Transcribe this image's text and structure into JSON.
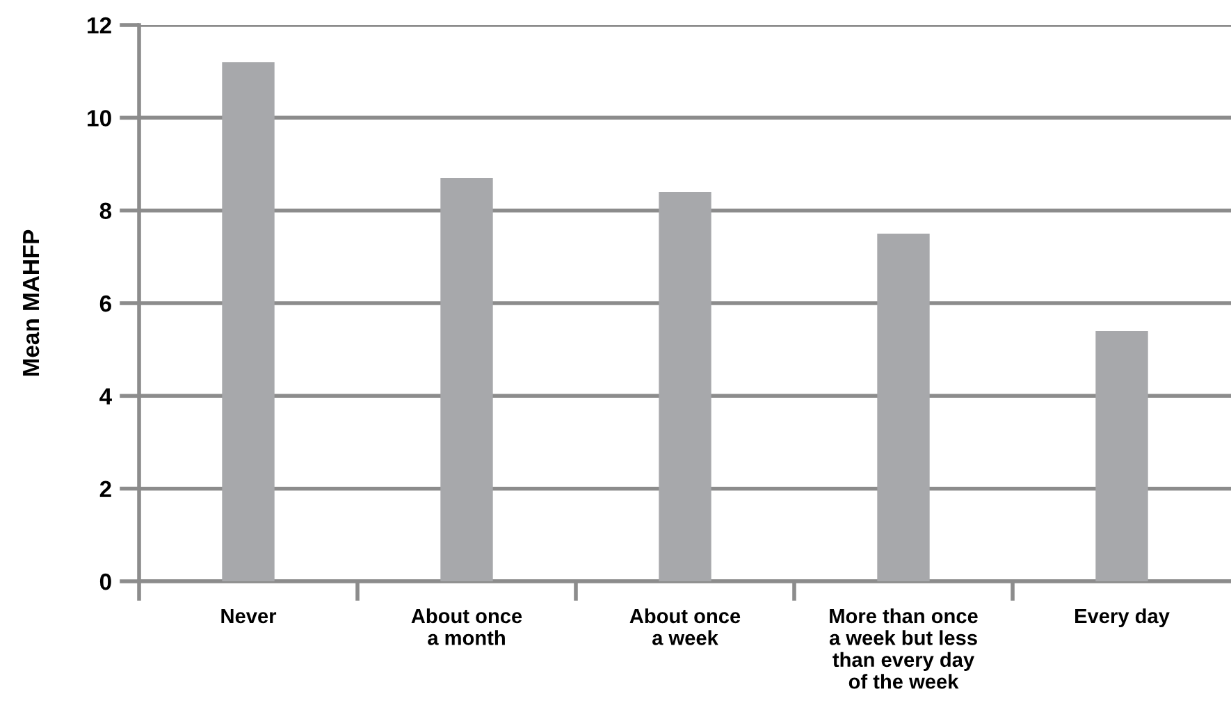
{
  "chart_data": {
    "type": "bar",
    "ylabel": "Mean MAHFP",
    "categories": [
      "Never",
      "About once\na month",
      "About once\na week",
      "More than once\na week but less\nthan every day\nof the week",
      "Every day"
    ],
    "values": [
      11.2,
      8.7,
      8.4,
      7.5,
      5.4
    ],
    "color": "#a7a8ab",
    "ylim": [
      0,
      12
    ],
    "yticks": [
      0,
      2,
      4,
      6,
      8,
      10,
      12
    ],
    "grid": "y",
    "legend": false
  }
}
